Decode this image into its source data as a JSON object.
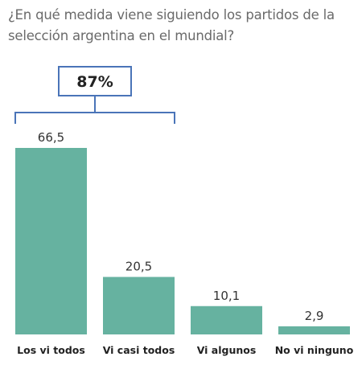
{
  "chart_data": {
    "type": "bar",
    "title": "¿En qué medida viene siguiendo los partidos de la selección argentina en el mundial?",
    "categories": [
      "Los vi todos",
      "Vi casi todos",
      "Vi algunos",
      "No vi ninguno"
    ],
    "values": [
      66.5,
      20.5,
      10.1,
      2.9
    ],
    "value_labels": [
      "66,5",
      "20,5",
      "10,1",
      "2,9"
    ],
    "ylim": [
      0,
      66.5
    ],
    "grid": false,
    "legend": "none",
    "bar_color": "#66b2a0",
    "callout": {
      "text": "87%",
      "spans_categories": [
        "Los vi todos",
        "Vi casi todos"
      ],
      "color": "#4a74b8"
    }
  }
}
